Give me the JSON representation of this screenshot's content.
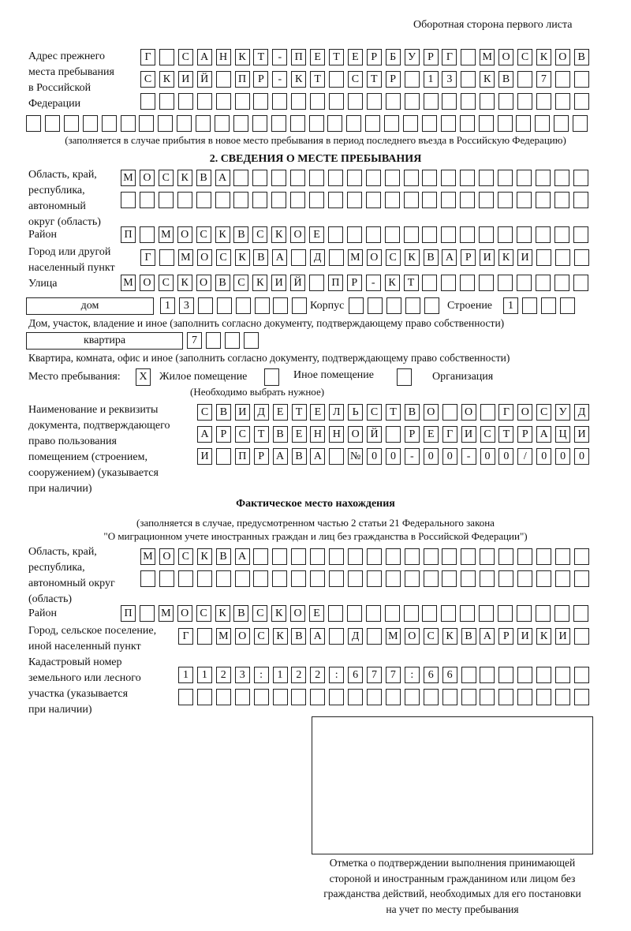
{
  "page_header": "Оборотная сторона первого листа",
  "previous_address": {
    "label": "Адрес прежнего\nместа пребывания\nв Российской\nФедерации",
    "rows": [
      "Г САНКТ-ПЕТЕРБУРГ МОСКОВ",
      "СКИЙ ПР-КТ СТР 13 КВ 7",
      "",
      ""
    ],
    "note": "(заполняется в случае прибытия в новое место пребывания в период последнего въезда в Российскую Федерацию)"
  },
  "section2": {
    "heading": "2. СВЕДЕНИЯ О МЕСТЕ ПРЕБЫВАНИЯ",
    "region_label": "Область, край,\nреспублика,\nавтономный\nокруг (область)",
    "region_rows": [
      "МОСКВА",
      ""
    ],
    "district_label": "Район",
    "district": "П МОСКВСКОЕ",
    "city_label": "Город или другой\nнаселенный пункт",
    "city": "Г МОСКВА Д МОСКВАРИКИ",
    "street_label": "Улица",
    "street": "МОСКОВСКИЙ ПР-КТ",
    "house_type": "дом",
    "house_number": "13",
    "korpus_label": "Корпус",
    "korpus": "",
    "building_label": "Строение",
    "building": "1",
    "house_note": "Дом, участок, владение и иное (заполнить согласно документу, подтверждающему право собственности)",
    "apartment_type": "квартира",
    "apartment_number": "7",
    "apartment_note": "Квартира, комната, офис и иное (заполнить согласно документу, подтверждающему право собственности)",
    "stay_place_label": "Место пребывания:",
    "options": [
      {
        "label": "Жилое помещение",
        "mark": "X"
      },
      {
        "label": "Иное помещение",
        "mark": ""
      },
      {
        "label": "Организация",
        "mark": ""
      }
    ],
    "choose_note": "(Необходимо выбрать нужное)",
    "document_label": "Наименование и реквизиты\nдокумента, подтверждающего\nправо пользования\nпомещением (строением,\nсооружением) (указывается\nпри наличии)",
    "document_rows": [
      "СВИДЕТЕЛЬСТВО О ГОСУД",
      "АРСТВЕННОЙ РЕГИСТРАЦИ",
      "И ПРАВА №00-00-00/000"
    ]
  },
  "actual_location": {
    "heading": "Фактическое место нахождения",
    "note_line1": "(заполняется в случае, предусмотренном частью 2 статьи 21 Федерального закона",
    "note_line2": "\"О миграционном учете иностранных граждан и лиц без гражданства в Российской Федерации\")",
    "region_label": "Область, край,\nреспублика,\nавтономный округ\n(область)",
    "region_rows": [
      "МОСКВА",
      ""
    ],
    "district_label": "Район",
    "district": "П МОСКВСКОЕ",
    "city_label": "Город, сельское поселение,\nиной населенный пункт",
    "city": "Г МОСКВА Д МОСКВАРИКИ",
    "cadastral_label": "Кадастровый номер\nземельного или лесного\nучастка (указывается\nпри наличии)",
    "cadastral_rows": [
      "1123:122:677:66",
      ""
    ]
  },
  "confirmation": {
    "caption": "Отметка о подтверждении выполнения принимающей\nстороной и иностранным гражданином или лицом без\nгражданства действий, необходимых для его постановки\nна учет по месту пребывания"
  }
}
